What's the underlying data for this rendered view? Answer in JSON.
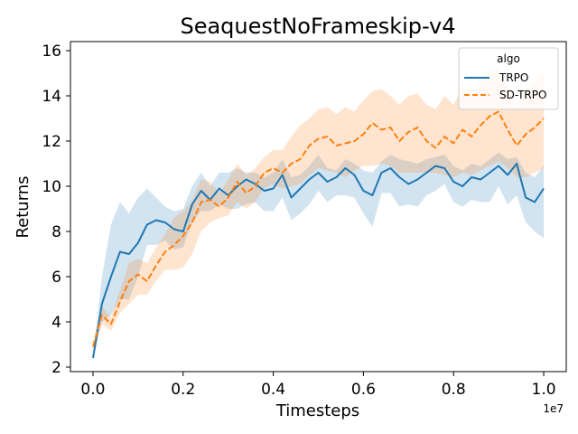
{
  "chart_data": {
    "type": "line",
    "title": "SeaquestNoFrameskip-v4",
    "xlabel": "Timesteps",
    "ylabel": "Returns",
    "x_offset_label": "1e7",
    "xlim": [
      -0.05,
      1.05
    ],
    "ylim": [
      1.8,
      16.4
    ],
    "xticks": [
      0.0,
      0.2,
      0.4,
      0.6,
      0.8,
      1.0
    ],
    "xtick_labels": [
      "0.0",
      "0.2",
      "0.4",
      "0.6",
      "0.8",
      "1.0"
    ],
    "yticks": [
      2,
      4,
      6,
      8,
      10,
      12,
      14,
      16
    ],
    "ytick_labels": [
      "2",
      "4",
      "6",
      "8",
      "10",
      "12",
      "14",
      "16"
    ],
    "grid": false,
    "legend": {
      "title": "algo",
      "position": "top-right"
    },
    "series": [
      {
        "name": "TRPO",
        "color": "#1f77b4",
        "style": "solid",
        "x": [
          0.0,
          0.02,
          0.04,
          0.06,
          0.08,
          0.1,
          0.12,
          0.14,
          0.16,
          0.18,
          0.2,
          0.22,
          0.24,
          0.26,
          0.28,
          0.3,
          0.32,
          0.34,
          0.36,
          0.38,
          0.4,
          0.42,
          0.44,
          0.46,
          0.48,
          0.5,
          0.52,
          0.54,
          0.56,
          0.58,
          0.6,
          0.62,
          0.64,
          0.66,
          0.68,
          0.7,
          0.72,
          0.74,
          0.76,
          0.78,
          0.8,
          0.82,
          0.84,
          0.86,
          0.88,
          0.9,
          0.92,
          0.94,
          0.96,
          0.98,
          1.0
        ],
        "y": [
          2.4,
          4.8,
          6.0,
          7.1,
          7.0,
          7.5,
          8.3,
          8.5,
          8.4,
          8.1,
          8.0,
          9.2,
          9.8,
          9.4,
          9.9,
          9.6,
          10.0,
          10.3,
          10.1,
          9.8,
          9.9,
          10.5,
          9.5,
          9.9,
          10.3,
          10.6,
          10.2,
          10.4,
          10.8,
          10.5,
          9.8,
          9.6,
          10.6,
          10.8,
          10.4,
          10.1,
          10.3,
          10.6,
          10.9,
          10.8,
          10.2,
          10.0,
          10.4,
          10.3,
          10.6,
          10.9,
          10.5,
          11.0,
          9.5,
          9.3,
          9.9
        ],
        "lower": [
          2.3,
          4.0,
          4.3,
          5.0,
          5.0,
          6.0,
          7.4,
          7.4,
          7.6,
          7.2,
          7.3,
          8.4,
          8.9,
          8.9,
          9.2,
          9.0,
          9.0,
          9.2,
          9.3,
          8.9,
          8.9,
          9.5,
          8.5,
          8.8,
          9.2,
          9.8,
          9.3,
          9.6,
          9.6,
          9.5,
          8.8,
          8.2,
          9.7,
          9.7,
          9.1,
          9.2,
          9.1,
          9.6,
          9.8,
          10.1,
          9.3,
          9.1,
          9.4,
          9.3,
          9.3,
          10.0,
          9.2,
          9.6,
          8.4,
          8.0,
          7.7
        ],
        "upper": [
          2.5,
          6.0,
          8.3,
          9.3,
          8.8,
          9.5,
          9.9,
          9.5,
          9.1,
          8.9,
          9.0,
          10.0,
          10.6,
          10.0,
          10.6,
          10.6,
          10.8,
          10.6,
          10.6,
          10.4,
          10.6,
          11.2,
          10.4,
          10.5,
          10.9,
          11.4,
          10.8,
          10.7,
          11.2,
          11.0,
          10.7,
          10.6,
          11.1,
          11.4,
          11.2,
          11.1,
          11.0,
          11.2,
          11.3,
          11.4,
          10.9,
          10.7,
          11.0,
          10.9,
          11.2,
          11.5,
          11.2,
          11.3,
          10.6,
          10.4,
          10.9
        ]
      },
      {
        "name": "SD-TRPO",
        "color": "#ff7f0e",
        "style": "dashed",
        "x": [
          0.0,
          0.02,
          0.04,
          0.06,
          0.08,
          0.1,
          0.12,
          0.14,
          0.16,
          0.18,
          0.2,
          0.22,
          0.24,
          0.26,
          0.28,
          0.3,
          0.32,
          0.34,
          0.36,
          0.38,
          0.4,
          0.42,
          0.44,
          0.46,
          0.48,
          0.5,
          0.52,
          0.54,
          0.56,
          0.58,
          0.6,
          0.62,
          0.64,
          0.66,
          0.68,
          0.7,
          0.72,
          0.74,
          0.76,
          0.78,
          0.8,
          0.82,
          0.84,
          0.86,
          0.88,
          0.9,
          0.92,
          0.94,
          0.96,
          0.98,
          1.0
        ],
        "y": [
          2.9,
          4.3,
          3.9,
          4.9,
          5.8,
          6.1,
          5.8,
          6.5,
          7.1,
          7.4,
          7.8,
          8.4,
          9.3,
          9.4,
          9.1,
          9.5,
          10.2,
          9.7,
          10.0,
          10.6,
          10.8,
          10.6,
          11.0,
          11.2,
          11.8,
          12.1,
          12.2,
          11.8,
          11.9,
          12.0,
          12.3,
          12.8,
          12.5,
          12.6,
          12.0,
          12.4,
          12.6,
          12.0,
          11.7,
          12.2,
          11.9,
          12.5,
          12.2,
          12.7,
          13.1,
          13.3,
          12.5,
          11.8,
          12.3,
          12.6,
          13.0
        ],
        "lower": [
          2.7,
          3.9,
          3.6,
          4.4,
          4.8,
          5.2,
          5.2,
          5.8,
          6.3,
          6.3,
          6.4,
          7.0,
          8.0,
          8.4,
          8.6,
          8.7,
          9.3,
          9.0,
          9.3,
          9.9,
          10.1,
          9.9,
          10.0,
          10.1,
          10.5,
          10.8,
          10.7,
          10.6,
          10.4,
          10.7,
          10.9,
          10.9,
          11.0,
          10.9,
          10.6,
          10.6,
          10.6,
          10.6,
          10.6,
          10.5,
          10.4,
          10.6,
          10.5,
          10.7,
          10.9,
          11.1,
          10.8,
          10.4,
          10.4,
          10.6,
          10.8
        ],
        "upper": [
          3.1,
          4.7,
          4.2,
          5.4,
          6.6,
          6.8,
          6.6,
          7.3,
          7.9,
          8.6,
          8.9,
          9.4,
          10.3,
          10.2,
          9.7,
          10.3,
          11.0,
          10.5,
          10.8,
          11.3,
          11.6,
          11.6,
          12.2,
          12.7,
          13.0,
          13.4,
          13.5,
          13.2,
          13.5,
          13.3,
          13.8,
          14.2,
          14.3,
          14.0,
          13.6,
          14.0,
          14.1,
          13.6,
          13.4,
          14.0,
          13.6,
          14.4,
          14.0,
          14.6,
          15.1,
          15.2,
          14.3,
          13.5,
          14.3,
          14.7,
          15.1
        ]
      }
    ]
  }
}
